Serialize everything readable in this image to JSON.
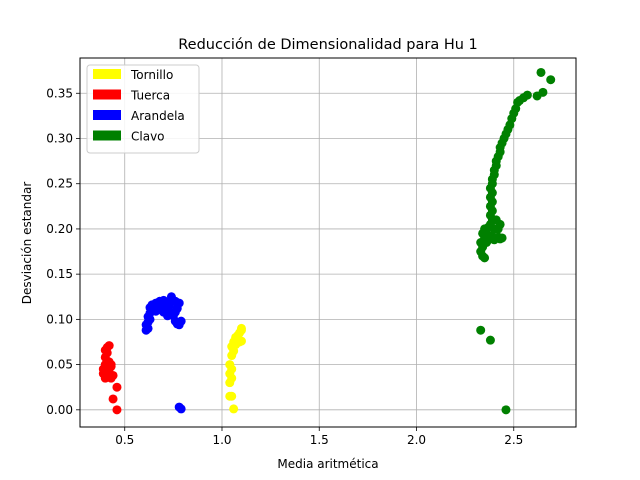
{
  "chart_data": {
    "type": "scatter",
    "title": "Reducción de Dimensionalidad para Hu 1",
    "xlabel": "Media aritmética",
    "ylabel": "Desviación estandar",
    "xlim": [
      0.27,
      2.82
    ],
    "ylim": [
      -0.019,
      0.389
    ],
    "xticks": [
      0.5,
      1.0,
      1.5,
      2.0,
      2.5
    ],
    "xtick_labels": [
      "0.5",
      "1.0",
      "1.5",
      "2.0",
      "2.5"
    ],
    "yticks": [
      0.0,
      0.05,
      0.1,
      0.15,
      0.2,
      0.25,
      0.3,
      0.35
    ],
    "ytick_labels": [
      "0.00",
      "0.05",
      "0.10",
      "0.15",
      "0.20",
      "0.25",
      "0.30",
      "0.35"
    ],
    "grid": true,
    "legend": "top-left",
    "series": [
      {
        "name": "Tornillo",
        "color": "#ffff00",
        "points": [
          [
            1.04,
            0.015
          ],
          [
            1.05,
            0.015
          ],
          [
            1.06,
            0.001
          ],
          [
            1.04,
            0.03
          ],
          [
            1.05,
            0.035
          ],
          [
            1.04,
            0.04
          ],
          [
            1.05,
            0.045
          ],
          [
            1.04,
            0.05
          ],
          [
            1.05,
            0.06
          ],
          [
            1.06,
            0.065
          ],
          [
            1.05,
            0.07
          ],
          [
            1.07,
            0.072
          ],
          [
            1.06,
            0.075
          ],
          [
            1.08,
            0.076
          ],
          [
            1.09,
            0.075
          ],
          [
            1.1,
            0.076
          ],
          [
            1.07,
            0.08
          ],
          [
            1.08,
            0.082
          ],
          [
            1.09,
            0.085
          ],
          [
            1.1,
            0.088
          ],
          [
            1.1,
            0.09
          ]
        ]
      },
      {
        "name": "Tuerca",
        "color": "#ff0000",
        "points": [
          [
            0.46,
            0.0
          ],
          [
            0.44,
            0.012
          ],
          [
            0.46,
            0.025
          ],
          [
            0.39,
            0.04
          ],
          [
            0.39,
            0.045
          ],
          [
            0.4,
            0.035
          ],
          [
            0.41,
            0.038
          ],
          [
            0.42,
            0.036
          ],
          [
            0.43,
            0.035
          ],
          [
            0.44,
            0.038
          ],
          [
            0.42,
            0.045
          ],
          [
            0.43,
            0.048
          ],
          [
            0.4,
            0.05
          ],
          [
            0.41,
            0.052
          ],
          [
            0.42,
            0.053
          ],
          [
            0.43,
            0.05
          ],
          [
            0.4,
            0.058
          ],
          [
            0.41,
            0.063
          ],
          [
            0.4,
            0.066
          ],
          [
            0.41,
            0.069
          ],
          [
            0.42,
            0.071
          ]
        ]
      },
      {
        "name": "Arandela",
        "color": "#0000ff",
        "points": [
          [
            0.78,
            0.003
          ],
          [
            0.79,
            0.001
          ],
          [
            0.61,
            0.088
          ],
          [
            0.62,
            0.09
          ],
          [
            0.61,
            0.094
          ],
          [
            0.62,
            0.097
          ],
          [
            0.63,
            0.1
          ],
          [
            0.62,
            0.103
          ],
          [
            0.63,
            0.107
          ],
          [
            0.64,
            0.11
          ],
          [
            0.63,
            0.113
          ],
          [
            0.64,
            0.116
          ],
          [
            0.66,
            0.118
          ],
          [
            0.68,
            0.12
          ],
          [
            0.7,
            0.121
          ],
          [
            0.72,
            0.118
          ],
          [
            0.73,
            0.115
          ],
          [
            0.74,
            0.125
          ],
          [
            0.76,
            0.12
          ],
          [
            0.78,
            0.118
          ],
          [
            0.77,
            0.112
          ],
          [
            0.76,
            0.108
          ],
          [
            0.75,
            0.104
          ],
          [
            0.76,
            0.098
          ],
          [
            0.77,
            0.095
          ],
          [
            0.78,
            0.094
          ],
          [
            0.7,
            0.108
          ],
          [
            0.72,
            0.104
          ],
          [
            0.67,
            0.112
          ],
          [
            0.66,
            0.109
          ],
          [
            0.65,
            0.113
          ],
          [
            0.69,
            0.115
          ],
          [
            0.71,
            0.111
          ],
          [
            0.73,
            0.108
          ],
          [
            0.79,
            0.098
          ]
        ]
      },
      {
        "name": "Clavo",
        "color": "#008000",
        "points": [
          [
            2.46,
            0.0
          ],
          [
            2.33,
            0.088
          ],
          [
            2.38,
            0.077
          ],
          [
            2.34,
            0.17
          ],
          [
            2.35,
            0.168
          ],
          [
            2.33,
            0.175
          ],
          [
            2.34,
            0.18
          ],
          [
            2.33,
            0.185
          ],
          [
            2.35,
            0.19
          ],
          [
            2.36,
            0.185
          ],
          [
            2.37,
            0.188
          ],
          [
            2.38,
            0.19
          ],
          [
            2.39,
            0.192
          ],
          [
            2.4,
            0.188
          ],
          [
            2.41,
            0.19
          ],
          [
            2.42,
            0.191
          ],
          [
            2.43,
            0.189
          ],
          [
            2.44,
            0.19
          ],
          [
            2.34,
            0.195
          ],
          [
            2.35,
            0.2
          ],
          [
            2.36,
            0.198
          ],
          [
            2.37,
            0.202
          ],
          [
            2.38,
            0.205
          ],
          [
            2.39,
            0.21
          ],
          [
            2.4,
            0.2
          ],
          [
            2.42,
            0.2
          ],
          [
            2.43,
            0.205
          ],
          [
            2.41,
            0.21
          ],
          [
            2.38,
            0.215
          ],
          [
            2.39,
            0.22
          ],
          [
            2.38,
            0.225
          ],
          [
            2.39,
            0.23
          ],
          [
            2.38,
            0.235
          ],
          [
            2.39,
            0.24
          ],
          [
            2.38,
            0.245
          ],
          [
            2.39,
            0.25
          ],
          [
            2.39,
            0.255
          ],
          [
            2.4,
            0.26
          ],
          [
            2.4,
            0.265
          ],
          [
            2.41,
            0.27
          ],
          [
            2.41,
            0.275
          ],
          [
            2.42,
            0.28
          ],
          [
            2.43,
            0.285
          ],
          [
            2.43,
            0.29
          ],
          [
            2.44,
            0.295
          ],
          [
            2.45,
            0.3
          ],
          [
            2.46,
            0.305
          ],
          [
            2.47,
            0.31
          ],
          [
            2.48,
            0.315
          ],
          [
            2.49,
            0.322
          ],
          [
            2.5,
            0.328
          ],
          [
            2.51,
            0.333
          ],
          [
            2.52,
            0.34
          ],
          [
            2.53,
            0.342
          ],
          [
            2.55,
            0.345
          ],
          [
            2.57,
            0.348
          ],
          [
            2.62,
            0.347
          ],
          [
            2.65,
            0.351
          ],
          [
            2.64,
            0.373
          ],
          [
            2.69,
            0.365
          ]
        ]
      }
    ]
  }
}
